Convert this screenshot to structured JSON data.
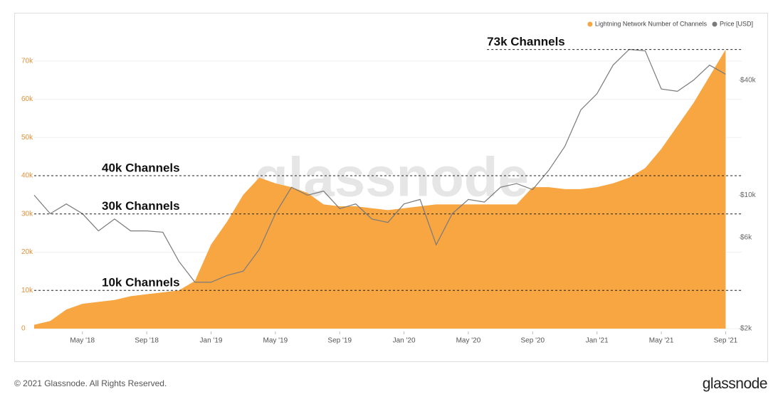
{
  "chart_data": {
    "type": "area-line",
    "legend_position": "top-right",
    "watermark": "glassnode",
    "x": [
      "2018-02",
      "2018-03",
      "2018-04",
      "2018-05",
      "2018-06",
      "2018-07",
      "2018-08",
      "2018-09",
      "2018-10",
      "2018-11",
      "2018-12",
      "2019-01",
      "2019-02",
      "2019-03",
      "2019-04",
      "2019-05",
      "2019-06",
      "2019-07",
      "2019-08",
      "2019-09",
      "2019-10",
      "2019-11",
      "2019-12",
      "2020-01",
      "2020-02",
      "2020-03",
      "2020-04",
      "2020-05",
      "2020-06",
      "2020-07",
      "2020-08",
      "2020-09",
      "2020-10",
      "2020-11",
      "2020-12",
      "2021-01",
      "2021-02",
      "2021-03",
      "2021-04",
      "2021-05",
      "2021-06",
      "2021-07",
      "2021-08",
      "2021-09"
    ],
    "xlim": [
      "2018-02",
      "2021-10"
    ],
    "xticks": [
      {
        "value": "2018-05",
        "label": "May '18"
      },
      {
        "value": "2018-09",
        "label": "Sep '18"
      },
      {
        "value": "2019-01",
        "label": "Jan '19"
      },
      {
        "value": "2019-05",
        "label": "May '19"
      },
      {
        "value": "2019-09",
        "label": "Sep '19"
      },
      {
        "value": "2020-01",
        "label": "Jan '20"
      },
      {
        "value": "2020-05",
        "label": "May '20"
      },
      {
        "value": "2020-09",
        "label": "Sep '20"
      },
      {
        "value": "2021-01",
        "label": "Jan '21"
      },
      {
        "value": "2021-05",
        "label": "May '21"
      },
      {
        "value": "2021-09",
        "label": "Sep '21"
      }
    ],
    "ylim": [
      0,
      80000
    ],
    "yticks": [
      0,
      {
        "value": 10000,
        "label": "10k"
      },
      {
        "value": 20000,
        "label": "20k"
      },
      {
        "value": 30000,
        "label": "30k"
      },
      {
        "value": 40000,
        "label": "40k"
      },
      {
        "value": 50000,
        "label": "50k"
      },
      {
        "value": 60000,
        "label": "60k"
      },
      {
        "value": 70000,
        "label": "70k"
      }
    ],
    "y2lim": [
      2000,
      80000
    ],
    "y2_log_scale": true,
    "y2ticks": [
      {
        "value": 2000,
        "label": "$2k"
      },
      {
        "value": 6000,
        "label": "$6k"
      },
      {
        "value": 10000,
        "label": "$10k"
      },
      {
        "value": 40000,
        "label": "$40k"
      }
    ],
    "series": [
      {
        "name": "Lightning Network Number of Channels",
        "color": "#f7a642",
        "kind": "area",
        "values": [
          1000,
          2000,
          5000,
          6500,
          7000,
          7500,
          8500,
          9000,
          9500,
          10000,
          12500,
          22000,
          28000,
          35000,
          39500,
          38000,
          37000,
          35500,
          32500,
          32000,
          32000,
          31500,
          31000,
          31500,
          32000,
          32500,
          32500,
          32500,
          32500,
          32500,
          32500,
          37000,
          37000,
          36500,
          36500,
          37000,
          38000,
          39500,
          42000,
          47000,
          53000,
          59000,
          66000,
          73000
        ]
      },
      {
        "name": "Price [USD]",
        "color": "#7a7a7a",
        "kind": "line",
        "axis": "y2",
        "values": [
          10000,
          8000,
          9000,
          8000,
          6500,
          7500,
          6500,
          6500,
          6400,
          4500,
          3500,
          3500,
          3800,
          4000,
          5200,
          8000,
          11000,
          10000,
          10500,
          8500,
          9000,
          7500,
          7200,
          9000,
          9500,
          5500,
          8000,
          9500,
          9200,
          11000,
          11500,
          10700,
          13500,
          18000,
          28000,
          34000,
          48000,
          58000,
          57000,
          36000,
          35000,
          40000,
          48000,
          43000
        ]
      }
    ],
    "annotations": [
      {
        "value": 73000,
        "label": "73k Channels"
      },
      {
        "value": 40000,
        "label": "40k Channels"
      },
      {
        "value": 30000,
        "label": "30k Channels"
      },
      {
        "value": 10000,
        "label": "10k Channels"
      }
    ]
  },
  "footer": {
    "copyright": "© 2021 Glassnode. All Rights Reserved.",
    "logo": "glassnode"
  }
}
